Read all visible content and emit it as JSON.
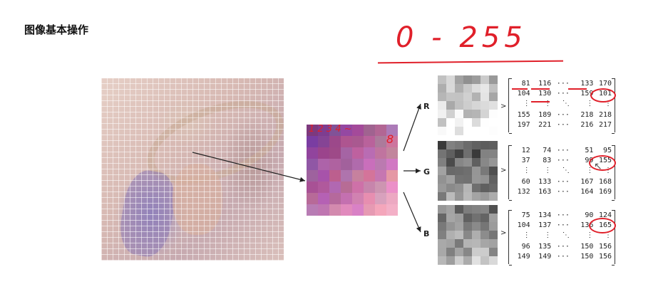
{
  "title": "图像基本操作",
  "annotation": {
    "range": "0 - 255"
  },
  "zoom_annotation": {
    "numbers": "1 2 3 4 ~",
    "last": "8"
  },
  "channels": {
    "r": {
      "label": "R",
      "rows": [
        [
          "81",
          "116",
          "···",
          "133",
          "170"
        ],
        [
          "104",
          "130",
          "···",
          "159",
          "101"
        ],
        [
          "⋮",
          "⋮",
          "⋱",
          "⋮",
          "⋮"
        ],
        [
          "155",
          "189",
          "···",
          "218",
          "218"
        ],
        [
          "197",
          "221",
          "···",
          "216",
          "217"
        ]
      ]
    },
    "g": {
      "label": "G",
      "rows": [
        [
          "12",
          "74",
          "···",
          "51",
          "95"
        ],
        [
          "37",
          "83",
          "···",
          "99",
          "155"
        ],
        [
          "⋮",
          "⋮",
          "⋱",
          "⋮",
          "⋮"
        ],
        [
          "60",
          "133",
          "···",
          "167",
          "168"
        ],
        [
          "132",
          "163",
          "···",
          "164",
          "169"
        ]
      ]
    },
    "b": {
      "label": "B",
      "rows": [
        [
          "75",
          "134",
          "···",
          "90",
          "124"
        ],
        [
          "104",
          "137",
          "···",
          "136",
          "165"
        ],
        [
          "⋮",
          "⋮",
          "⋱",
          "⋮",
          "⋮"
        ],
        [
          "96",
          "135",
          "···",
          "150",
          "156"
        ],
        [
          "149",
          "149",
          "···",
          "150",
          "156"
        ]
      ]
    }
  },
  "arrow_glyph": ">",
  "colors": {
    "annotation": "#e0202a"
  }
}
